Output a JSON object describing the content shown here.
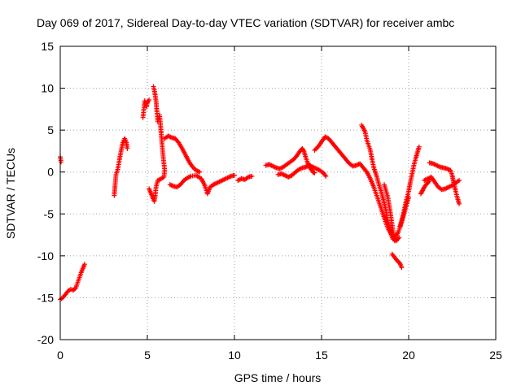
{
  "chart_data": {
    "type": "scatter",
    "title": "Day 069 of 2017, Sidereal Day-to-day VTEC variation (SDTVAR) for receiver ambc",
    "xlabel": "GPS time / hours",
    "ylabel": "SDTVAR / TECUs",
    "xlim": [
      0,
      25
    ],
    "ylim": [
      -20,
      15
    ],
    "xticks": [
      0,
      5,
      10,
      15,
      20,
      25
    ],
    "yticks": [
      -20,
      -15,
      -10,
      -5,
      0,
      5,
      10,
      15
    ],
    "grid": true,
    "marker": "+",
    "color": "#ff0000",
    "series": [
      {
        "name": "SDTVAR",
        "segments": [
          [
            [
              0.0,
              1.8
            ],
            [
              0.05,
              1.2
            ]
          ],
          [
            [
              0.0,
              -15.2
            ],
            [
              0.15,
              -15.0
            ],
            [
              0.3,
              -14.6
            ],
            [
              0.45,
              -14.2
            ],
            [
              0.6,
              -14.0
            ],
            [
              0.75,
              -14.1
            ],
            [
              0.9,
              -13.8
            ],
            [
              1.0,
              -13.2
            ],
            [
              1.1,
              -12.6
            ],
            [
              1.2,
              -12.0
            ],
            [
              1.3,
              -11.5
            ],
            [
              1.4,
              -11.0
            ]
          ],
          [
            [
              3.1,
              -2.8
            ],
            [
              3.15,
              -1.5
            ],
            [
              3.2,
              -0.3
            ],
            [
              3.3,
              0.3
            ],
            [
              3.4,
              1.5
            ],
            [
              3.5,
              2.6
            ],
            [
              3.6,
              3.5
            ],
            [
              3.7,
              4.0
            ],
            [
              3.8,
              3.5
            ],
            [
              3.85,
              2.8
            ]
          ],
          [
            [
              4.75,
              6.5
            ],
            [
              4.8,
              7.5
            ],
            [
              4.85,
              8.5
            ],
            [
              4.95,
              7.8
            ],
            [
              5.0,
              8.3
            ],
            [
              5.1,
              8.6
            ]
          ],
          [
            [
              5.35,
              10.2
            ],
            [
              5.4,
              9.8
            ],
            [
              5.5,
              8.5
            ],
            [
              5.55,
              7.2
            ],
            [
              5.6,
              6.0
            ],
            [
              5.7,
              6.8
            ],
            [
              5.75,
              5.8
            ],
            [
              5.8,
              4.5
            ],
            [
              5.85,
              3.2
            ],
            [
              5.9,
              2.0
            ],
            [
              5.95,
              1.0
            ],
            [
              6.0,
              0.2
            ],
            [
              5.95,
              -0.6
            ],
            [
              5.8,
              -0.8
            ],
            [
              5.6,
              -1.0
            ],
            [
              5.5,
              -1.8
            ],
            [
              5.45,
              -2.8
            ],
            [
              5.4,
              -3.5
            ],
            [
              5.3,
              -3.0
            ],
            [
              5.2,
              -2.5
            ],
            [
              5.1,
              -2.0
            ]
          ],
          [
            [
              6.0,
              4.0
            ],
            [
              6.2,
              4.3
            ],
            [
              6.4,
              4.1
            ],
            [
              6.6,
              4.0
            ],
            [
              6.8,
              3.5
            ],
            [
              7.0,
              2.8
            ],
            [
              7.2,
              2.0
            ],
            [
              7.4,
              1.2
            ],
            [
              7.6,
              0.6
            ],
            [
              7.8,
              0.2
            ],
            [
              8.0,
              0.0
            ]
          ],
          [
            [
              6.3,
              -1.5
            ],
            [
              6.5,
              -1.7
            ],
            [
              6.7,
              -1.8
            ],
            [
              6.9,
              -1.5
            ],
            [
              7.1,
              -1.0
            ],
            [
              7.3,
              -0.7
            ],
            [
              7.5,
              -0.5
            ],
            [
              7.8,
              -0.4
            ],
            [
              8.1,
              -0.8
            ],
            [
              8.3,
              -1.6
            ],
            [
              8.45,
              -2.6
            ],
            [
              8.6,
              -1.8
            ],
            [
              8.8,
              -1.5
            ],
            [
              9.0,
              -1.3
            ],
            [
              9.2,
              -1.1
            ],
            [
              9.4,
              -0.9
            ],
            [
              9.6,
              -0.7
            ],
            [
              9.8,
              -0.5
            ],
            [
              10.0,
              -0.4
            ]
          ],
          [
            [
              10.2,
              -1.0
            ],
            [
              10.4,
              -0.8
            ],
            [
              10.6,
              -0.9
            ],
            [
              10.8,
              -0.6
            ],
            [
              11.0,
              -0.5
            ]
          ],
          [
            [
              11.8,
              0.8
            ],
            [
              12.0,
              0.9
            ],
            [
              12.2,
              0.7
            ],
            [
              12.4,
              0.5
            ],
            [
              12.6,
              0.4
            ],
            [
              12.8,
              0.6
            ],
            [
              13.0,
              0.9
            ],
            [
              13.2,
              1.2
            ],
            [
              13.4,
              1.5
            ],
            [
              13.6,
              2.0
            ],
            [
              13.8,
              2.6
            ],
            [
              13.9,
              2.8
            ],
            [
              14.0,
              2.4
            ],
            [
              14.1,
              1.7
            ],
            [
              14.2,
              1.1
            ],
            [
              14.3,
              0.7
            ],
            [
              14.4,
              0.3
            ],
            [
              14.5,
              0.0
            ],
            [
              14.6,
              -0.1
            ]
          ],
          [
            [
              12.5,
              -0.3
            ],
            [
              12.7,
              -0.2
            ],
            [
              12.9,
              -0.4
            ],
            [
              13.1,
              -0.6
            ],
            [
              13.3,
              -0.4
            ],
            [
              13.5,
              0.0
            ],
            [
              13.7,
              0.3
            ],
            [
              13.9,
              0.5
            ],
            [
              14.1,
              0.6
            ],
            [
              14.3,
              0.8
            ],
            [
              14.5,
              0.6
            ],
            [
              14.7,
              0.4
            ],
            [
              14.9,
              0.2
            ],
            [
              15.1,
              -0.1
            ],
            [
              15.25,
              -0.5
            ]
          ],
          [
            [
              14.6,
              2.6
            ],
            [
              14.8,
              3.0
            ],
            [
              15.0,
              3.6
            ],
            [
              15.2,
              4.2
            ],
            [
              15.4,
              4.0
            ],
            [
              15.6,
              3.5
            ],
            [
              15.8,
              3.0
            ],
            [
              16.0,
              2.5
            ],
            [
              16.2,
              2.0
            ],
            [
              16.4,
              1.5
            ],
            [
              16.6,
              1.0
            ],
            [
              16.8,
              0.7
            ],
            [
              17.0,
              0.8
            ],
            [
              17.2,
              1.0
            ],
            [
              17.4,
              0.5
            ],
            [
              17.6,
              0.0
            ],
            [
              17.8,
              -0.8
            ],
            [
              18.0,
              -1.8
            ],
            [
              18.2,
              -3.0
            ],
            [
              18.4,
              -4.2
            ],
            [
              18.6,
              -5.5
            ],
            [
              18.8,
              -6.7
            ],
            [
              19.0,
              -7.4
            ],
            [
              19.2,
              -7.8
            ],
            [
              19.4,
              -7.2
            ],
            [
              19.6,
              -6.0
            ],
            [
              19.8,
              -4.5
            ],
            [
              20.0,
              -3.0
            ]
          ],
          [
            [
              17.3,
              5.6
            ],
            [
              17.5,
              4.8
            ],
            [
              17.6,
              3.8
            ],
            [
              17.8,
              2.6
            ],
            [
              17.9,
              1.5
            ],
            [
              18.0,
              0.5
            ],
            [
              18.15,
              -0.4
            ],
            [
              18.25,
              -1.2
            ],
            [
              18.4,
              -2.2
            ],
            [
              18.55,
              -3.3
            ],
            [
              18.7,
              -4.6
            ],
            [
              18.8,
              -5.8
            ],
            [
              18.9,
              -6.7
            ],
            [
              19.0,
              -7.5
            ],
            [
              19.1,
              -8.0
            ],
            [
              19.3,
              -8.2
            ],
            [
              19.45,
              -7.8
            ]
          ],
          [
            [
              18.6,
              -1.5
            ],
            [
              18.8,
              -3.0
            ],
            [
              18.9,
              -4.2
            ],
            [
              19.0,
              -5.6
            ],
            [
              19.1,
              -7.0
            ],
            [
              19.2,
              -8.2
            ]
          ],
          [
            [
              19.05,
              -9.8
            ],
            [
              19.2,
              -10.2
            ],
            [
              19.35,
              -10.6
            ],
            [
              19.5,
              -10.9
            ],
            [
              19.6,
              -11.4
            ]
          ],
          [
            [
              19.5,
              -6.5
            ],
            [
              19.7,
              -5.0
            ],
            [
              19.85,
              -3.5
            ],
            [
              20.0,
              -2.3
            ],
            [
              20.1,
              -1.2
            ],
            [
              20.2,
              -0.2
            ],
            [
              20.3,
              0.8
            ],
            [
              20.4,
              1.6
            ],
            [
              20.5,
              2.3
            ],
            [
              20.6,
              3.0
            ]
          ],
          [
            [
              20.7,
              -2.6
            ],
            [
              20.8,
              -2.2
            ],
            [
              20.9,
              -1.8
            ],
            [
              21.0,
              -1.5
            ],
            [
              21.1,
              -1.3
            ],
            [
              21.2,
              -1.0
            ]
          ],
          [
            [
              20.9,
              -1.0
            ],
            [
              21.1,
              -0.8
            ],
            [
              21.3,
              -0.6
            ],
            [
              21.5,
              -1.2
            ],
            [
              21.7,
              -1.8
            ],
            [
              21.9,
              -2.1
            ],
            [
              22.1,
              -2.0
            ],
            [
              22.3,
              -1.8
            ],
            [
              22.5,
              -1.6
            ],
            [
              22.7,
              -1.3
            ],
            [
              22.9,
              -1.0
            ]
          ],
          [
            [
              21.2,
              1.1
            ],
            [
              21.4,
              1.0
            ],
            [
              21.6,
              0.8
            ],
            [
              21.8,
              0.6
            ],
            [
              22.0,
              0.5
            ],
            [
              22.2,
              0.4
            ],
            [
              22.4,
              0.2
            ],
            [
              22.5,
              -0.4
            ],
            [
              22.55,
              -0.9
            ],
            [
              22.6,
              -1.4
            ],
            [
              22.7,
              -2.3
            ],
            [
              22.8,
              -3.1
            ],
            [
              22.9,
              -3.8
            ]
          ]
        ]
      }
    ]
  }
}
